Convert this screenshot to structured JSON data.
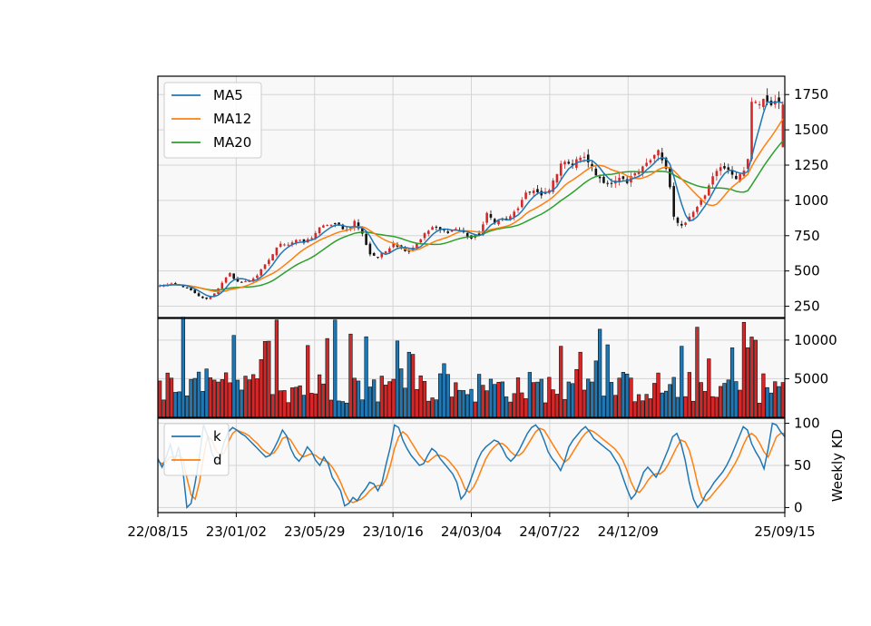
{
  "chart_data": [
    {
      "type": "candlestick",
      "panel": "price",
      "ylim": [
        170,
        1880
      ],
      "yticks": [
        250,
        500,
        750,
        1000,
        1250,
        1500,
        1750
      ],
      "grid": true,
      "legend_position": "top-left",
      "colors": {
        "up": "#d62728",
        "down": "#111111",
        "ma5": "#1f77b4",
        "ma12": "#ff7f0e",
        "ma20": "#2ca02c"
      },
      "series": [
        {
          "name": "MA5",
          "color": "#1f77b4"
        },
        {
          "name": "MA12",
          "color": "#ff7f0e"
        },
        {
          "name": "MA20",
          "color": "#2ca02c"
        }
      ],
      "close_anchors": [
        [
          0,
          395
        ],
        [
          3,
          405
        ],
        [
          6,
          390
        ],
        [
          8,
          360
        ],
        [
          10,
          320
        ],
        [
          12,
          300
        ],
        [
          14,
          340
        ],
        [
          16,
          420
        ],
        [
          18,
          480
        ],
        [
          19,
          440
        ],
        [
          21,
          420
        ],
        [
          23,
          430
        ],
        [
          25,
          470
        ],
        [
          27,
          540
        ],
        [
          29,
          620
        ],
        [
          31,
          700
        ],
        [
          33,
          690
        ],
        [
          35,
          720
        ],
        [
          37,
          700
        ],
        [
          39,
          740
        ],
        [
          41,
          800
        ],
        [
          43,
          830
        ],
        [
          46,
          820
        ],
        [
          48,
          790
        ],
        [
          50,
          850
        ],
        [
          52,
          760
        ],
        [
          54,
          620
        ],
        [
          56,
          600
        ],
        [
          58,
          640
        ],
        [
          60,
          700
        ],
        [
          62,
          660
        ],
        [
          64,
          640
        ],
        [
          66,
          700
        ],
        [
          68,
          760
        ],
        [
          70,
          810
        ],
        [
          72,
          790
        ],
        [
          74,
          780
        ],
        [
          76,
          800
        ],
        [
          78,
          770
        ],
        [
          80,
          730
        ],
        [
          82,
          760
        ],
        [
          84,
          900
        ],
        [
          86,
          850
        ],
        [
          88,
          860
        ],
        [
          90,
          880
        ],
        [
          92,
          950
        ],
        [
          94,
          1040
        ],
        [
          96,
          1080
        ],
        [
          98,
          1030
        ],
        [
          100,
          1070
        ],
        [
          102,
          1200
        ],
        [
          104,
          1290
        ],
        [
          106,
          1250
        ],
        [
          108,
          1310
        ],
        [
          110,
          1280
        ],
        [
          112,
          1180
        ],
        [
          114,
          1140
        ],
        [
          116,
          1110
        ],
        [
          118,
          1150
        ],
        [
          120,
          1120
        ],
        [
          122,
          1200
        ],
        [
          124,
          1250
        ],
        [
          126,
          1280
        ],
        [
          128,
          1350
        ],
        [
          130,
          1220
        ],
        [
          131,
          1080
        ],
        [
          132,
          880
        ],
        [
          134,
          820
        ],
        [
          136,
          880
        ],
        [
          138,
          960
        ],
        [
          140,
          1040
        ],
        [
          142,
          1180
        ],
        [
          144,
          1250
        ],
        [
          146,
          1200
        ],
        [
          148,
          1150
        ],
        [
          150,
          1200
        ],
        [
          151,
          1300
        ],
        [
          152,
          1700
        ]
      ],
      "volume_panel": {
        "ylim": [
          0,
          12800
        ],
        "yticks": [
          5000,
          10000
        ]
      }
    },
    {
      "type": "line",
      "panel": "indicator",
      "ylabel": "Weekly KD",
      "ylim": [
        -6,
        106
      ],
      "yticks": [
        0,
        50,
        100
      ],
      "grid": true,
      "legend_position": "top-left",
      "series": [
        {
          "name": "k",
          "color": "#1f77b4",
          "values": [
            58,
            48,
            60,
            75,
            55,
            72,
            45,
            0,
            5,
            30,
            60,
            98,
            85,
            65,
            55,
            60,
            78,
            90,
            95,
            92,
            88,
            85,
            80,
            75,
            70,
            65,
            60,
            62,
            70,
            80,
            92,
            85,
            70,
            60,
            55,
            62,
            72,
            66,
            56,
            50,
            60,
            52,
            36,
            28,
            20,
            2,
            5,
            12,
            8,
            16,
            22,
            30,
            28,
            20,
            30,
            52,
            72,
            98,
            95,
            80,
            70,
            62,
            56,
            50,
            52,
            62,
            70,
            66,
            58,
            52,
            46,
            40,
            30,
            10,
            16,
            28,
            42,
            56,
            66,
            72,
            76,
            80,
            78,
            70,
            60,
            55,
            60,
            68,
            78,
            88,
            95,
            98,
            92,
            80,
            66,
            58,
            52,
            44,
            56,
            72,
            80,
            86,
            92,
            96,
            90,
            82,
            78,
            74,
            70,
            66,
            58,
            50,
            36,
            22,
            10,
            16,
            28,
            42,
            48,
            42,
            36,
            46,
            58,
            70,
            84,
            88,
            76,
            56,
            30,
            10,
            0,
            6,
            16,
            22,
            30,
            36,
            42,
            50,
            60,
            72,
            84,
            96,
            92,
            76,
            66,
            58,
            46,
            70,
            100,
            98,
            90,
            84
          ]
        },
        {
          "name": "d",
          "color": "#ff7f0e",
          "values": [
            55,
            52,
            55,
            60,
            60,
            62,
            58,
            35,
            15,
            10,
            30,
            60,
            85,
            80,
            68,
            62,
            65,
            78,
            88,
            92,
            90,
            88,
            85,
            80,
            76,
            70,
            66,
            63,
            65,
            72,
            82,
            84,
            80,
            72,
            64,
            60,
            62,
            64,
            62,
            58,
            56,
            54,
            48,
            40,
            30,
            18,
            8,
            6,
            8,
            10,
            14,
            20,
            24,
            26,
            26,
            34,
            50,
            70,
            84,
            90,
            86,
            78,
            70,
            62,
            56,
            54,
            58,
            62,
            62,
            60,
            56,
            50,
            44,
            34,
            22,
            18,
            24,
            34,
            46,
            58,
            66,
            72,
            76,
            76,
            72,
            66,
            62,
            62,
            66,
            74,
            82,
            90,
            94,
            92,
            84,
            76,
            68,
            60,
            54,
            58,
            66,
            74,
            82,
            88,
            92,
            90,
            86,
            82,
            78,
            74,
            70,
            64,
            56,
            44,
            30,
            20,
            18,
            24,
            32,
            38,
            40,
            40,
            44,
            52,
            62,
            72,
            80,
            78,
            68,
            50,
            28,
            12,
            8,
            12,
            18,
            24,
            30,
            36,
            44,
            52,
            62,
            74,
            84,
            88,
            84,
            76,
            66,
            60,
            72,
            84,
            88,
            88
          ]
        }
      ]
    }
  ],
  "x_axis": {
    "ticks": [
      {
        "label": "22/08/15",
        "pos": 0
      },
      {
        "label": "23/01/02",
        "pos": 20
      },
      {
        "label": "23/05/29",
        "pos": 40
      },
      {
        "label": "23/10/16",
        "pos": 60
      },
      {
        "label": "24/03/04",
        "pos": 80
      },
      {
        "label": "24/07/22",
        "pos": 100
      },
      {
        "label": "24/12/09",
        "pos": 120
      },
      {
        "label": "25/09/15",
        "pos": 160
      }
    ]
  }
}
